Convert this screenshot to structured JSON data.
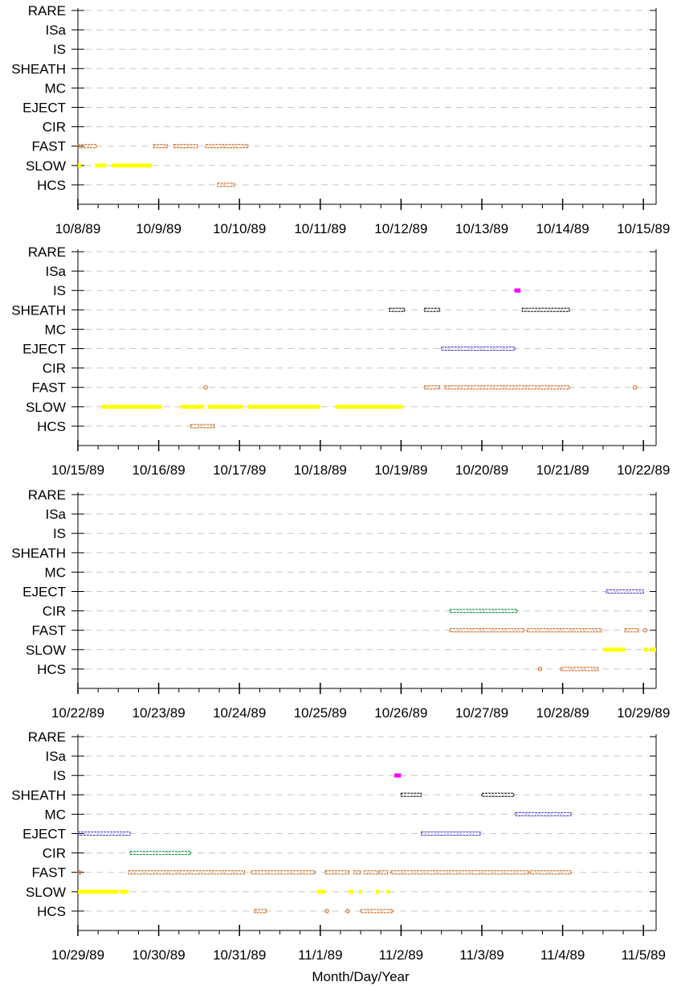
{
  "chart_data": {
    "type": "scatter",
    "xlabel": "Month/Day/Year",
    "categories": [
      "RARE",
      "ISa",
      "IS",
      "SHEATH",
      "MC",
      "EJECT",
      "CIR",
      "FAST",
      "SLOW",
      "HCS"
    ],
    "colors": {
      "RARE": "#000000",
      "ISa": "#000000",
      "IS": "#ff00ff",
      "SHEATH": "#000000",
      "MC": "#3333cc",
      "EJECT": "#3333cc",
      "CIR": "#008833",
      "FAST": "#cc5500",
      "SLOW": "#ffff00",
      "HCS": "#cc5500"
    },
    "grid": true,
    "panels": [
      {
        "xlim": [
          "1989-10-08",
          "1989-10-15"
        ],
        "x_ticks": [
          "10/8/89",
          "10/9/89",
          "10/10/89",
          "10/11/89",
          "10/12/89",
          "10/13/89",
          "10/14/89",
          "10/15/89"
        ],
        "series": [
          {
            "category": "FAST",
            "intervals": [
              [
                "1989-10-08 00:00",
                "1989-10-08 05:30"
              ],
              [
                "1989-10-08 22:30",
                "1989-10-09 02:30"
              ],
              [
                "1989-10-09 04:30",
                "1989-10-09 11:30"
              ],
              [
                "1989-10-09 14:00",
                "1989-10-10 02:30"
              ]
            ]
          },
          {
            "category": "SLOW",
            "intervals": [
              [
                "1989-10-08 00:00",
                "1989-10-08 00:30"
              ],
              [
                "1989-10-08 05:00",
                "1989-10-08 08:30"
              ],
              [
                "1989-10-08 10:00",
                "1989-10-08 22:00"
              ]
            ]
          },
          {
            "category": "HCS",
            "intervals": [
              [
                "1989-10-09 17:30",
                "1989-10-09 22:30"
              ]
            ]
          }
        ]
      },
      {
        "xlim": [
          "1989-10-15",
          "1989-10-22"
        ],
        "x_ticks": [
          "10/15/89",
          "10/16/89",
          "10/17/89",
          "10/18/89",
          "10/19/89",
          "10/20/89",
          "10/21/89",
          "10/22/89"
        ],
        "series": [
          {
            "category": "IS",
            "intervals": [
              [
                "1989-10-20 09:40",
                "1989-10-20 11:30"
              ]
            ]
          },
          {
            "category": "SHEATH",
            "intervals": [
              [
                "1989-10-18 20:30",
                "1989-10-19 01:00"
              ],
              [
                "1989-10-19 07:00",
                "1989-10-19 11:30"
              ],
              [
                "1989-10-20 12:00",
                "1989-10-21 02:00"
              ]
            ]
          },
          {
            "category": "EJECT",
            "intervals": [
              [
                "1989-10-19 12:00",
                "1989-10-20 09:50"
              ]
            ]
          },
          {
            "category": "FAST",
            "intervals": [
              [
                "1989-10-16 13:30",
                "1989-10-16 13:50"
              ],
              [
                "1989-10-19 07:00",
                "1989-10-19 11:30"
              ],
              [
                "1989-10-19 13:00",
                "1989-10-21 02:00"
              ],
              [
                "1989-10-21 21:00",
                "1989-10-21 21:20"
              ]
            ]
          },
          {
            "category": "SLOW",
            "intervals": [
              [
                "1989-10-15 07:00",
                "1989-10-16 01:00"
              ],
              [
                "1989-10-16 06:30",
                "1989-10-16 13:30"
              ],
              [
                "1989-10-16 14:30",
                "1989-10-17 01:00"
              ],
              [
                "1989-10-17 02:30",
                "1989-10-18 00:00"
              ],
              [
                "1989-10-18 04:30",
                "1989-10-19 00:30"
              ]
            ]
          },
          {
            "category": "HCS",
            "intervals": [
              [
                "1989-10-16 09:30",
                "1989-10-16 16:30"
              ]
            ]
          }
        ]
      },
      {
        "xlim": [
          "1989-10-22",
          "1989-10-29"
        ],
        "x_ticks": [
          "10/22/89",
          "10/23/89",
          "10/24/89",
          "10/25/89",
          "10/26/89",
          "10/27/89",
          "10/28/89",
          "10/29/89"
        ],
        "series": [
          {
            "category": "EJECT",
            "intervals": [
              [
                "1989-10-28 13:00",
                "1989-10-29 00:00"
              ]
            ]
          },
          {
            "category": "CIR",
            "intervals": [
              [
                "1989-10-26 14:30",
                "1989-10-27 10:30"
              ]
            ]
          },
          {
            "category": "FAST",
            "intervals": [
              [
                "1989-10-26 14:30",
                "1989-10-27 12:30"
              ],
              [
                "1989-10-27 13:30",
                "1989-10-28 11:30"
              ],
              [
                "1989-10-28 18:30",
                "1989-10-28 22:30"
              ],
              [
                "1989-10-29 00:00",
                "1989-10-29 00:30"
              ]
            ]
          },
          {
            "category": "SLOW",
            "intervals": [
              [
                "1989-10-28 12:00",
                "1989-10-28 18:30"
              ],
              [
                "1989-10-29 00:00",
                "1989-10-29 01:30"
              ],
              [
                "1989-10-29 02:00",
                "1989-10-29 04:30"
              ]
            ]
          },
          {
            "category": "HCS",
            "intervals": [
              [
                "1989-10-27 16:50",
                "1989-10-27 17:10"
              ],
              [
                "1989-10-27 23:30",
                "1989-10-28 10:30"
              ]
            ]
          }
        ]
      },
      {
        "xlim": [
          "1989-10-29",
          "1989-11-05"
        ],
        "x_ticks": [
          "10/29/89",
          "10/30/89",
          "10/31/89",
          "11/1/89",
          "11/2/89",
          "11/3/89",
          "11/4/89",
          "11/5/89"
        ],
        "series": [
          {
            "category": "IS",
            "intervals": [
              [
                "1989-11-01 22:00",
                "1989-11-02 00:00"
              ]
            ]
          },
          {
            "category": "SHEATH",
            "intervals": [
              [
                "1989-11-02 00:00",
                "1989-11-02 06:00"
              ],
              [
                "1989-11-03 00:00",
                "1989-11-03 09:30"
              ]
            ]
          },
          {
            "category": "MC",
            "intervals": [
              [
                "1989-11-03 10:00",
                "1989-11-04 02:30"
              ]
            ]
          },
          {
            "category": "EJECT",
            "intervals": [
              [
                "1989-10-29 00:00",
                "1989-10-29 15:30"
              ],
              [
                "1989-11-02 06:00",
                "1989-11-02 23:30"
              ]
            ]
          },
          {
            "category": "CIR",
            "intervals": [
              [
                "1989-10-29 15:30",
                "1989-10-30 09:30"
              ]
            ]
          },
          {
            "category": "FAST",
            "intervals": [
              [
                "1989-10-29 00:00",
                "1989-10-29 00:20"
              ],
              [
                "1989-10-29 15:00",
                "1989-10-31 01:30"
              ],
              [
                "1989-10-31 03:30",
                "1989-10-31 22:30"
              ],
              [
                "1989-11-01 01:30",
                "1989-11-01 08:30"
              ],
              [
                "1989-11-01 10:00",
                "1989-11-01 12:00"
              ],
              [
                "1989-11-01 13:00",
                "1989-11-01 17:00"
              ],
              [
                "1989-11-01 17:30",
                "1989-11-01 20:00"
              ],
              [
                "1989-11-01 21:00",
                "1989-11-03 14:00"
              ],
              [
                "1989-11-03 14:30",
                "1989-11-04 02:30"
              ]
            ]
          },
          {
            "category": "SLOW",
            "intervals": [
              [
                "1989-10-29 00:00",
                "1989-10-29 12:00"
              ],
              [
                "1989-10-29 12:30",
                "1989-10-29 15:00"
              ],
              [
                "1989-10-31 23:00",
                "1989-11-01 01:30"
              ],
              [
                "1989-11-01 08:30",
                "1989-11-01 10:00"
              ],
              [
                "1989-11-01 11:30",
                "1989-11-01 12:30"
              ],
              [
                "1989-11-01 16:30",
                "1989-11-01 17:30"
              ],
              [
                "1989-11-01 19:40",
                "1989-11-01 20:40"
              ]
            ]
          },
          {
            "category": "HCS",
            "intervals": [
              [
                "1989-10-31 04:30",
                "1989-10-31 08:00"
              ],
              [
                "1989-11-01 01:30",
                "1989-11-01 02:00"
              ],
              [
                "1989-11-01 07:40",
                "1989-11-01 08:10"
              ],
              [
                "1989-11-01 12:00",
                "1989-11-01 21:30"
              ]
            ]
          }
        ]
      }
    ]
  }
}
